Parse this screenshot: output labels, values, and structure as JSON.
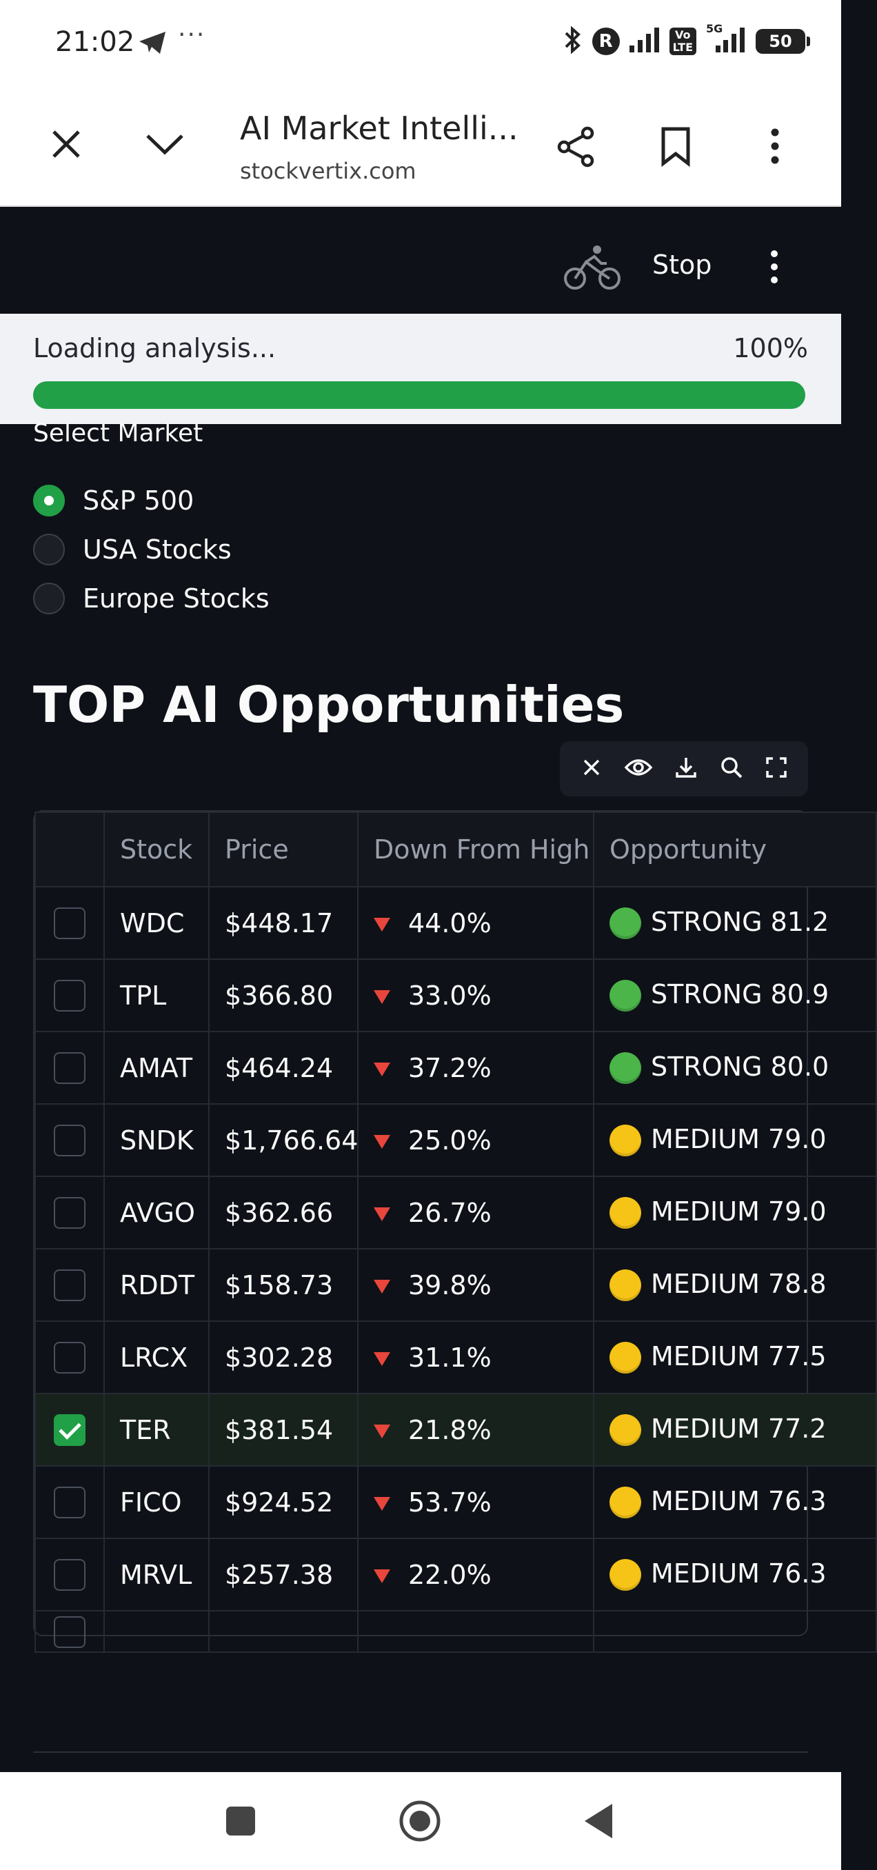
{
  "status_bar": {
    "time": "21:02",
    "dots": "···",
    "r_badge": "R",
    "volte": "Vo\nLTE",
    "network": "5G",
    "battery": "50"
  },
  "browser": {
    "title": "AI Market Intelli...",
    "url": "stockvertix.com"
  },
  "app_header": {
    "stop_label": "Stop"
  },
  "loading": {
    "label": "Loading analysis...",
    "percent_text": "100%",
    "progress": 1.0
  },
  "market": {
    "label": "Select Market",
    "options": [
      {
        "label": "S&P 500",
        "selected": true
      },
      {
        "label": "USA Stocks",
        "selected": false
      },
      {
        "label": "Europe Stocks",
        "selected": false
      }
    ]
  },
  "section_title": "TOP AI Opportunities",
  "table": {
    "headers": [
      "Stock",
      "Price",
      "Down From High",
      "Opportunity"
    ],
    "rows": [
      {
        "stock": "WDC",
        "price": "$448.17",
        "down": "44.0%",
        "level": "green",
        "opportunity": "STRONG 81.2",
        "checked": false
      },
      {
        "stock": "TPL",
        "price": "$366.80",
        "down": "33.0%",
        "level": "green",
        "opportunity": "STRONG 80.9",
        "checked": false
      },
      {
        "stock": "AMAT",
        "price": "$464.24",
        "down": "37.2%",
        "level": "green",
        "opportunity": "STRONG 80.0",
        "checked": false
      },
      {
        "stock": "SNDK",
        "price": "$1,766.64",
        "down": "25.0%",
        "level": "yellow",
        "opportunity": "MEDIUM 79.0",
        "checked": false
      },
      {
        "stock": "AVGO",
        "price": "$362.66",
        "down": "26.7%",
        "level": "yellow",
        "opportunity": "MEDIUM 79.0",
        "checked": false
      },
      {
        "stock": "RDDT",
        "price": "$158.73",
        "down": "39.8%",
        "level": "yellow",
        "opportunity": "MEDIUM 78.8",
        "checked": false
      },
      {
        "stock": "LRCX",
        "price": "$302.28",
        "down": "31.1%",
        "level": "yellow",
        "opportunity": "MEDIUM 77.5",
        "checked": false
      },
      {
        "stock": "TER",
        "price": "$381.54",
        "down": "21.8%",
        "level": "yellow",
        "opportunity": "MEDIUM 77.2",
        "checked": true
      },
      {
        "stock": "FICO",
        "price": "$924.52",
        "down": "53.7%",
        "level": "yellow",
        "opportunity": "MEDIUM 76.3",
        "checked": false
      },
      {
        "stock": "MRVL",
        "price": "$257.38",
        "down": "22.0%",
        "level": "yellow",
        "opportunity": "MEDIUM 76.3",
        "checked": false
      }
    ]
  },
  "colors": {
    "accent": "#21a047",
    "background": "#0e1117",
    "down_arrow": "#e8463c",
    "strong": "#4bb54a",
    "medium": "#f6c417"
  },
  "icons": {
    "browser": [
      "close-icon",
      "chevron-down-icon",
      "share-icon",
      "bookmark-icon",
      "more-vert-icon"
    ],
    "app_header": [
      "cycling-icon",
      "more-vert-icon"
    ],
    "toolbar": [
      "close-icon",
      "eye-icon",
      "download-icon",
      "search-icon",
      "fullscreen-icon"
    ],
    "nav": [
      "recents-icon",
      "home-icon",
      "back-icon"
    ]
  }
}
